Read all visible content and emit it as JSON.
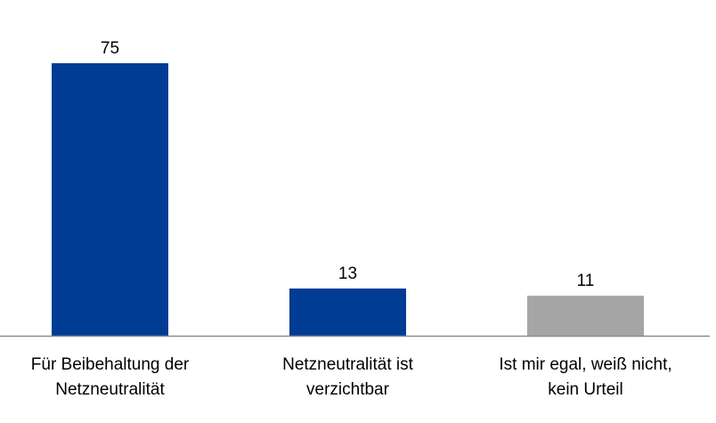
{
  "chart_data": {
    "type": "bar",
    "categories": [
      [
        "Für Beibehaltung der",
        "Netzneutralität"
      ],
      [
        "Netzneutralität ist",
        "verzichtbar"
      ],
      [
        "Ist mir egal, weiß nicht,",
        "kein Urteil"
      ]
    ],
    "values": [
      75,
      13,
      11
    ],
    "value_labels": [
      "75",
      "13",
      "11"
    ],
    "bar_colors": [
      "#003B94",
      "#003B94",
      "#A6A6A6"
    ],
    "axis_color": "#8C8C8C",
    "ylim": [
      0,
      80
    ],
    "grid": false,
    "legend": "none",
    "title": "",
    "xlabel": "",
    "ylabel": ""
  }
}
